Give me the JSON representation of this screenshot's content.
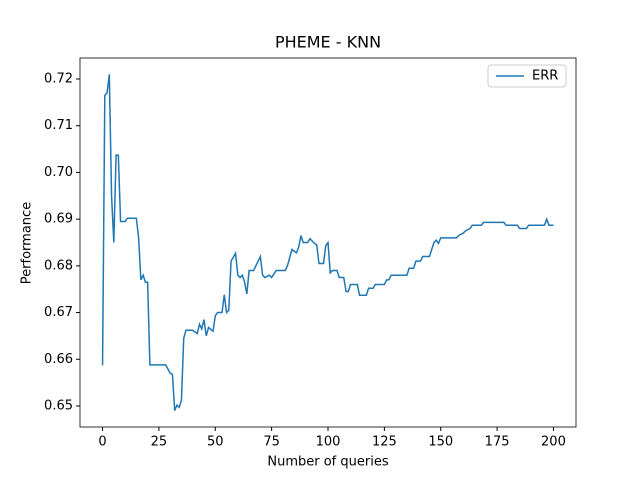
{
  "chart_data": {
    "type": "line",
    "title": "PHEME - KNN",
    "x_label": "Number of queries",
    "y_label": "Performance",
    "x": [
      0,
      1,
      2,
      3,
      4,
      5,
      6,
      7,
      8,
      10,
      11,
      15,
      16,
      17,
      18,
      19,
      20,
      21,
      28,
      30,
      31,
      32,
      33,
      34,
      35,
      36,
      37,
      40,
      42,
      43,
      44,
      45,
      46,
      47,
      49,
      50,
      51,
      53,
      54,
      55,
      56,
      57,
      59,
      60,
      61,
      62,
      63,
      64,
      65,
      67,
      68,
      70,
      71,
      72,
      74,
      75,
      77,
      81,
      82,
      84,
      86,
      87,
      88,
      89,
      91,
      92,
      94,
      95,
      96,
      98,
      99,
      100,
      101,
      102,
      104,
      105,
      107,
      108,
      109,
      110,
      113,
      114,
      117,
      118,
      120,
      121,
      125,
      126,
      127,
      128,
      135,
      136,
      138,
      139,
      141,
      142,
      145,
      146,
      147,
      148,
      149,
      150,
      157,
      158,
      160,
      161,
      163,
      164,
      168,
      169,
      178,
      179,
      184,
      185,
      188,
      189,
      196,
      197,
      198,
      200
    ],
    "series": [
      {
        "name": "ERR",
        "color": "#1f77b4",
        "values": [
          0.6587,
          0.7165,
          0.717,
          0.721,
          0.695,
          0.685,
          0.7037,
          0.7037,
          0.6895,
          0.6895,
          0.6902,
          0.6902,
          0.686,
          0.677,
          0.678,
          0.6765,
          0.6765,
          0.6588,
          0.6588,
          0.657,
          0.6568,
          0.649,
          0.6502,
          0.6497,
          0.6512,
          0.6645,
          0.6662,
          0.6662,
          0.6655,
          0.6675,
          0.6665,
          0.6685,
          0.665,
          0.6668,
          0.666,
          0.6693,
          0.67,
          0.67,
          0.6738,
          0.67,
          0.6705,
          0.681,
          0.6827,
          0.678,
          0.6775,
          0.678,
          0.6765,
          0.674,
          0.679,
          0.679,
          0.68,
          0.682,
          0.678,
          0.6775,
          0.678,
          0.6775,
          0.679,
          0.679,
          0.68,
          0.6835,
          0.6828,
          0.684,
          0.6865,
          0.685,
          0.685,
          0.6858,
          0.6848,
          0.6845,
          0.6805,
          0.6805,
          0.6843,
          0.685,
          0.6785,
          0.679,
          0.679,
          0.6775,
          0.6775,
          0.6745,
          0.6745,
          0.676,
          0.676,
          0.6737,
          0.6737,
          0.6752,
          0.6752,
          0.676,
          0.676,
          0.677,
          0.677,
          0.678,
          0.678,
          0.6795,
          0.6795,
          0.681,
          0.681,
          0.682,
          0.682,
          0.6835,
          0.685,
          0.6855,
          0.6848,
          0.686,
          0.686,
          0.6865,
          0.687,
          0.6875,
          0.688,
          0.6887,
          0.6887,
          0.6893,
          0.6893,
          0.6887,
          0.6887,
          0.688,
          0.688,
          0.6887,
          0.6887,
          0.69,
          0.6887,
          0.6887
        ]
      }
    ],
    "xlim": [
      -10,
      210
    ],
    "ylim": [
      0.6455,
      0.7245
    ],
    "xticks": [
      0,
      25,
      50,
      75,
      100,
      125,
      150,
      175,
      200
    ],
    "yticks": [
      0.65,
      0.66,
      0.67,
      0.68,
      0.69,
      {
        "value": 0.7,
        "label": "0.70"
      },
      0.71,
      0.72
    ],
    "legend": "upper right"
  }
}
